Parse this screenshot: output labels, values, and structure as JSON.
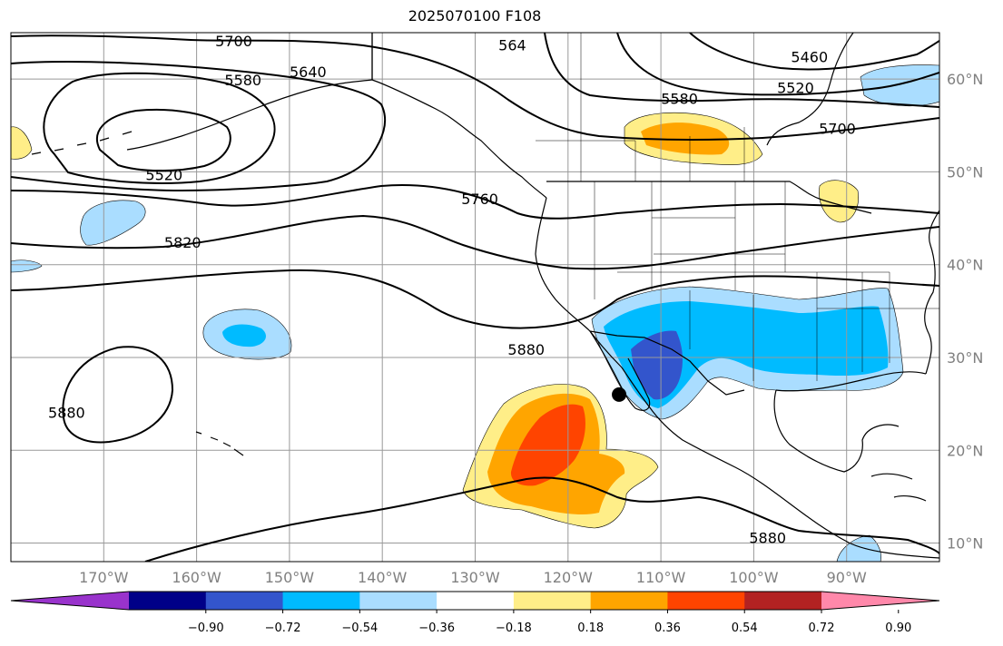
{
  "title": "2025070100 F108",
  "map": {
    "lon_range": [
      -180,
      -80
    ],
    "lat_range": [
      8,
      65
    ],
    "lon_ticks": [
      {
        "value": -170,
        "label": "170°W"
      },
      {
        "value": -160,
        "label": "160°W"
      },
      {
        "value": -150,
        "label": "150°W"
      },
      {
        "value": -140,
        "label": "140°W"
      },
      {
        "value": -130,
        "label": "130°W"
      },
      {
        "value": -120,
        "label": "120°W"
      },
      {
        "value": -110,
        "label": "110°W"
      },
      {
        "value": -100,
        "label": "100°W"
      },
      {
        "value": -90,
        "label": "90°W"
      }
    ],
    "lat_ticks": [
      {
        "value": 60,
        "label": "60°N"
      },
      {
        "value": 50,
        "label": "50°N"
      },
      {
        "value": 40,
        "label": "40°N"
      },
      {
        "value": 30,
        "label": "30°N"
      },
      {
        "value": 20,
        "label": "20°N"
      },
      {
        "value": 10,
        "label": "10°N"
      }
    ],
    "grid": true,
    "marker": {
      "lon": -114.5,
      "lat": 26
    }
  },
  "contour_labels": [
    {
      "text": "5700",
      "lon": -156,
      "lat": 64
    },
    {
      "text": "5580",
      "lon": -155,
      "lat": 59.8
    },
    {
      "text": "5640",
      "lon": -148,
      "lat": 60.7
    },
    {
      "text": "5520",
      "lon": -163.5,
      "lat": 49.6
    },
    {
      "text": "564",
      "lon": -126,
      "lat": 63.6
    },
    {
      "text": "5460",
      "lon": -94,
      "lat": 62.3
    },
    {
      "text": "5580",
      "lon": -108,
      "lat": 57.8
    },
    {
      "text": "5520",
      "lon": -95.5,
      "lat": 59
    },
    {
      "text": "5700",
      "lon": -91,
      "lat": 54.6
    },
    {
      "text": "5760",
      "lon": -129.5,
      "lat": 47
    },
    {
      "text": "5820",
      "lon": -161.5,
      "lat": 42.3
    },
    {
      "text": "5880",
      "lon": -124.5,
      "lat": 30.8
    },
    {
      "text": "5880",
      "lon": -174,
      "lat": 24
    },
    {
      "text": "5880",
      "lon": -98.5,
      "lat": 10.5
    }
  ],
  "colorbar": {
    "colors": [
      "#9933cc",
      "#000088",
      "#3355cc",
      "#00bbff",
      "#aaddff",
      "#ffffff",
      "#ffee88",
      "#ffa500",
      "#ff4400",
      "#b22222",
      "#ff88aa"
    ],
    "labels": [
      "−0.90",
      "−0.72",
      "−0.54",
      "−0.36",
      "−0.18",
      "0.18",
      "0.36",
      "0.54",
      "0.72",
      "0.90"
    ]
  }
}
